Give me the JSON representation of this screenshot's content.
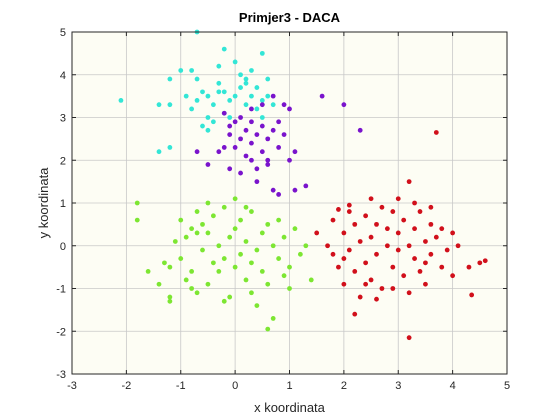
{
  "chart_data": {
    "type": "scatter",
    "title": "Primjer3 - DACA",
    "xlabel": "x koordinata",
    "ylabel": "y koordinata",
    "xlim": [
      -3,
      5
    ],
    "ylim": [
      -3,
      5
    ],
    "xticks": [
      -3,
      -2,
      -1,
      0,
      1,
      2,
      3,
      4,
      5
    ],
    "yticks": [
      -3,
      -2,
      -1,
      0,
      1,
      2,
      3,
      4,
      5
    ],
    "grid": true,
    "background": "#fdfdf4",
    "series": [
      {
        "color": "#33e6d6",
        "points": [
          [
            -2.1,
            3.4
          ],
          [
            -1.4,
            2.2
          ],
          [
            -1.2,
            2.3
          ],
          [
            -1.4,
            3.3
          ],
          [
            -1.2,
            3.3
          ],
          [
            -1.2,
            3.9
          ],
          [
            -1.0,
            4.1
          ],
          [
            -0.9,
            3.5
          ],
          [
            -0.8,
            3.2
          ],
          [
            -0.7,
            3.4
          ],
          [
            -0.7,
            3.9
          ],
          [
            -0.6,
            3.6
          ],
          [
            -0.5,
            3.0
          ],
          [
            -0.5,
            3.5
          ],
          [
            -0.4,
            3.3
          ],
          [
            -0.3,
            3.6
          ],
          [
            -0.3,
            3.8
          ],
          [
            -0.3,
            4.2
          ],
          [
            -0.2,
            3.1
          ],
          [
            -0.2,
            3.6
          ],
          [
            -0.1,
            3.4
          ],
          [
            -0.7,
            5.0
          ],
          [
            -0.6,
            2.8
          ],
          [
            -0.5,
            2.7
          ],
          [
            -0.4,
            2.9
          ],
          [
            -0.8,
            4.1
          ],
          [
            0.0,
            3.5
          ],
          [
            0.1,
            3.7
          ],
          [
            0.1,
            4.0
          ],
          [
            0.2,
            3.3
          ],
          [
            0.2,
            3.9
          ],
          [
            0.3,
            3.5
          ],
          [
            0.3,
            4.1
          ],
          [
            0.4,
            3.2
          ],
          [
            0.4,
            3.7
          ],
          [
            0.5,
            4.5
          ],
          [
            0.5,
            3.4
          ],
          [
            0.6,
            3.9
          ],
          [
            0.6,
            3.5
          ],
          [
            0.7,
            3.3
          ],
          [
            0.0,
            4.3
          ],
          [
            -0.2,
            4.6
          ],
          [
            0.2,
            3.8
          ],
          [
            0.5,
            3.0
          ],
          [
            -0.1,
            3.0
          ]
        ]
      },
      {
        "color": "#7a14cc",
        "points": [
          [
            -0.7,
            2.2
          ],
          [
            -0.5,
            1.9
          ],
          [
            -0.3,
            2.2
          ],
          [
            -0.2,
            2.3
          ],
          [
            -0.1,
            2.6
          ],
          [
            -0.1,
            2.8
          ],
          [
            0.0,
            2.3
          ],
          [
            0.0,
            2.9
          ],
          [
            0.1,
            2.5
          ],
          [
            0.1,
            3.0
          ],
          [
            0.1,
            1.7
          ],
          [
            0.2,
            2.1
          ],
          [
            0.2,
            2.7
          ],
          [
            0.3,
            2.4
          ],
          [
            0.3,
            2.9
          ],
          [
            0.3,
            3.2
          ],
          [
            0.4,
            2.6
          ],
          [
            0.4,
            1.8
          ],
          [
            0.5,
            2.8
          ],
          [
            0.5,
            3.3
          ],
          [
            0.5,
            2.2
          ],
          [
            0.6,
            2.5
          ],
          [
            0.6,
            2.0
          ],
          [
            0.7,
            2.7
          ],
          [
            0.7,
            3.5
          ],
          [
            0.8,
            2.9
          ],
          [
            0.8,
            2.3
          ],
          [
            0.9,
            2.6
          ],
          [
            0.9,
            3.3
          ],
          [
            1.0,
            3.2
          ],
          [
            1.0,
            2.0
          ],
          [
            1.1,
            2.2
          ],
          [
            0.6,
            1.9
          ],
          [
            0.3,
            2.0
          ],
          [
            1.6,
            3.5
          ],
          [
            2.0,
            3.3
          ],
          [
            2.3,
            2.7
          ],
          [
            0.7,
            1.3
          ],
          [
            0.8,
            1.2
          ],
          [
            1.3,
            1.4
          ],
          [
            1.1,
            1.3
          ],
          [
            -0.1,
            1.8
          ],
          [
            0.4,
            1.5
          ],
          [
            -0.2,
            3.1
          ]
        ]
      },
      {
        "color": "#7de632",
        "points": [
          [
            -1.8,
            0.6
          ],
          [
            -1.8,
            1.0
          ],
          [
            -1.6,
            -0.6
          ],
          [
            -1.3,
            -0.4
          ],
          [
            -1.2,
            -1.2
          ],
          [
            -1.2,
            -1.3
          ],
          [
            -1.1,
            0.1
          ],
          [
            -1.0,
            -0.3
          ],
          [
            -1.0,
            0.6
          ],
          [
            -0.9,
            -0.8
          ],
          [
            -0.9,
            0.2
          ],
          [
            -0.8,
            -0.6
          ],
          [
            -0.8,
            0.4
          ],
          [
            -0.7,
            -1.1
          ],
          [
            -0.7,
            0.8
          ],
          [
            -0.6,
            -0.1
          ],
          [
            -0.6,
            0.5
          ],
          [
            -0.5,
            -0.9
          ],
          [
            -0.5,
            0.3
          ],
          [
            -0.4,
            -0.4
          ],
          [
            -0.4,
            0.7
          ],
          [
            -0.3,
            0.0
          ],
          [
            -0.3,
            -0.6
          ],
          [
            -0.2,
            0.9
          ],
          [
            -0.2,
            -0.3
          ],
          [
            -0.1,
            0.2
          ],
          [
            -0.1,
            -1.2
          ],
          [
            0.0,
            -0.5
          ],
          [
            0.0,
            0.4
          ],
          [
            0.1,
            -0.2
          ],
          [
            0.1,
            0.6
          ],
          [
            0.2,
            -0.8
          ],
          [
            0.2,
            0.1
          ],
          [
            0.3,
            -0.4
          ],
          [
            0.3,
            0.8
          ],
          [
            0.4,
            -0.1
          ],
          [
            0.4,
            -1.4
          ],
          [
            0.5,
            0.3
          ],
          [
            0.5,
            -0.6
          ],
          [
            0.6,
            0.5
          ],
          [
            0.6,
            -0.9
          ],
          [
            0.7,
            0.0
          ],
          [
            0.7,
            -1.7
          ],
          [
            0.8,
            -0.3
          ],
          [
            0.9,
            0.2
          ],
          [
            1.0,
            -0.5
          ],
          [
            1.0,
            -1.0
          ],
          [
            1.1,
            0.4
          ],
          [
            1.2,
            -0.2
          ],
          [
            -1.2,
            -0.5
          ],
          [
            -0.8,
            -1.0
          ],
          [
            -0.5,
            1.0
          ],
          [
            0.2,
            0.9
          ],
          [
            0.6,
            -1.95
          ],
          [
            0.9,
            -0.7
          ],
          [
            1.4,
            -0.8
          ],
          [
            -0.2,
            -1.3
          ],
          [
            0.0,
            1.1
          ],
          [
            -0.7,
            0.3
          ],
          [
            0.3,
            -1.1
          ],
          [
            1.3,
            0.0
          ],
          [
            -1.4,
            -0.9
          ],
          [
            0.8,
            0.6
          ]
        ]
      },
      {
        "color": "#d1101b",
        "points": [
          [
            1.5,
            0.3
          ],
          [
            1.7,
            0.0
          ],
          [
            1.8,
            -0.2
          ],
          [
            1.8,
            0.6
          ],
          [
            1.9,
            -0.5
          ],
          [
            2.0,
            0.3
          ],
          [
            2.0,
            -0.9
          ],
          [
            2.1,
            0.8
          ],
          [
            2.1,
            -0.1
          ],
          [
            2.2,
            0.5
          ],
          [
            2.2,
            -0.6
          ],
          [
            2.3,
            0.1
          ],
          [
            2.3,
            -1.2
          ],
          [
            2.4,
            0.7
          ],
          [
            2.4,
            -0.4
          ],
          [
            2.5,
            0.2
          ],
          [
            2.5,
            -0.8
          ],
          [
            2.6,
            0.5
          ],
          [
            2.6,
            -0.2
          ],
          [
            2.7,
            0.9
          ],
          [
            2.7,
            -1.0
          ],
          [
            2.8,
            0.0
          ],
          [
            2.8,
            0.4
          ],
          [
            2.9,
            -0.5
          ],
          [
            2.9,
            0.8
          ],
          [
            3.0,
            -0.1
          ],
          [
            3.0,
            0.3
          ],
          [
            3.1,
            -0.7
          ],
          [
            3.1,
            0.6
          ],
          [
            3.2,
            0.0
          ],
          [
            3.2,
            -1.1
          ],
          [
            3.3,
            0.4
          ],
          [
            3.3,
            -0.3
          ],
          [
            3.4,
            0.8
          ],
          [
            3.4,
            -0.6
          ],
          [
            3.5,
            0.1
          ],
          [
            3.5,
            -0.9
          ],
          [
            3.6,
            0.5
          ],
          [
            3.6,
            -0.2
          ],
          [
            3.7,
            0.2
          ],
          [
            3.8,
            -0.5
          ],
          [
            3.8,
            0.4
          ],
          [
            3.9,
            -0.1
          ],
          [
            4.0,
            -0.7
          ],
          [
            4.1,
            0.0
          ],
          [
            4.3,
            -0.5
          ],
          [
            4.5,
            -0.4
          ],
          [
            4.6,
            -0.35
          ],
          [
            4.35,
            -1.15
          ],
          [
            3.7,
            2.65
          ],
          [
            3.2,
            1.5
          ],
          [
            3.2,
            -2.15
          ],
          [
            2.2,
            -1.6
          ],
          [
            2.6,
            -1.25
          ],
          [
            1.9,
            0.85
          ],
          [
            3.0,
            1.1
          ],
          [
            3.3,
            1.0
          ],
          [
            2.0,
            -0.3
          ],
          [
            2.5,
            1.1
          ],
          [
            3.6,
            0.9
          ],
          [
            2.1,
            0.95
          ],
          [
            4.0,
            0.3
          ],
          [
            2.9,
            -1.0
          ],
          [
            3.5,
            -0.4
          ],
          [
            2.4,
            -0.9
          ]
        ]
      }
    ]
  }
}
